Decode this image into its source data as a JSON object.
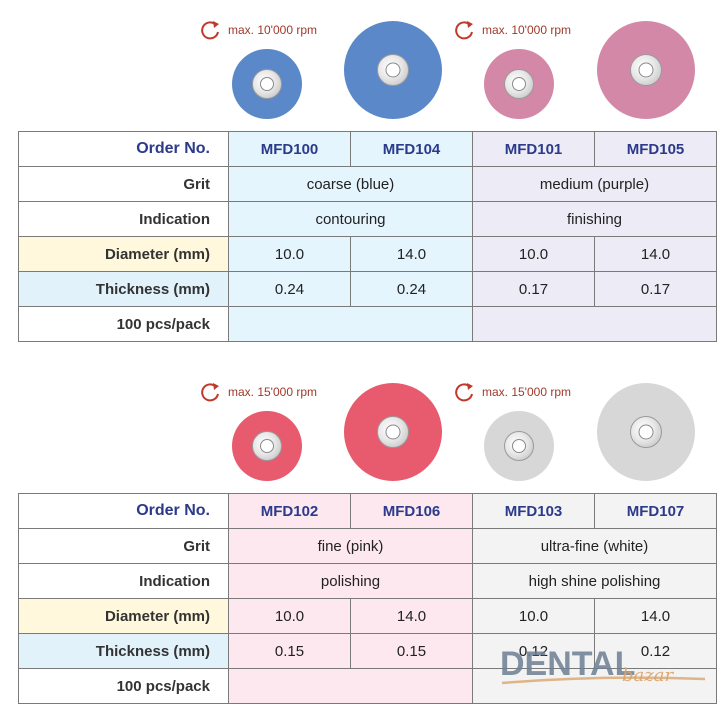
{
  "row_labels": {
    "order": "Order No.",
    "grit": "Grit",
    "indication": "Indication",
    "diameter": "Diameter (mm)",
    "thickness": "Thickness (mm)",
    "pack": "100 pcs/pack"
  },
  "sections": [
    {
      "speed_left": "max. 10'000 rpm",
      "speed_right": "max. 10'000 rpm",
      "colors": [
        "#5b88c8",
        "#5b88c8",
        "#d488a8",
        "#d488a8"
      ],
      "codes": [
        "MFD100",
        "MFD104",
        "MFD101",
        "MFD105"
      ],
      "grit_left": "coarse (blue)",
      "grit_right": "medium (purple)",
      "indication_left": "contouring",
      "indication_right": "finishing",
      "diameter": [
        "10.0",
        "14.0",
        "10.0",
        "14.0"
      ],
      "thickness": [
        "0.24",
        "0.24",
        "0.17",
        "0.17"
      ]
    },
    {
      "speed_left": "max. 15'000 rpm",
      "speed_right": "max. 15'000 rpm",
      "colors": [
        "#e85a6e",
        "#e85a6e",
        "#d7d7d7",
        "#d7d7d7"
      ],
      "codes": [
        "MFD102",
        "MFD106",
        "MFD103",
        "MFD107"
      ],
      "grit_left": "fine (pink)",
      "grit_right": "ultra-fine (white)",
      "indication_left": "polishing",
      "indication_right": "high shine polishing",
      "diameter": [
        "10.0",
        "14.0",
        "10.0",
        "14.0"
      ],
      "thickness": [
        "0.15",
        "0.15",
        "0.12",
        "0.12"
      ]
    }
  ],
  "logo": {
    "main": "DENTAL",
    "sub": "bazar"
  }
}
